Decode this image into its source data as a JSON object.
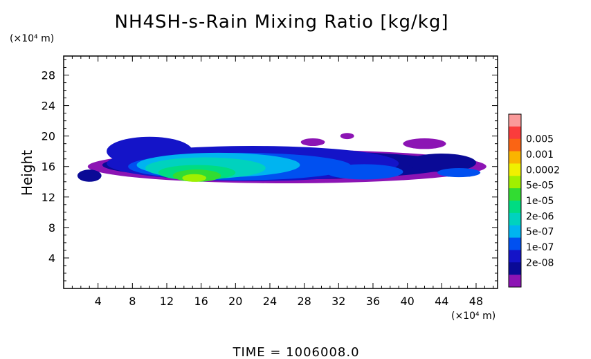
{
  "chart_data": {
    "type": "heatmap",
    "title": "NH4SH-s-Rain Mixing Ratio [kg/kg]",
    "xlabel": "",
    "ylabel": "Height",
    "x_unit": "(×10⁴ m)",
    "y_unit": "(×10⁴ m)",
    "xlim": [
      0,
      50.5
    ],
    "ylim": [
      0,
      30.5
    ],
    "x_ticks": [
      "4",
      "8",
      "12",
      "16",
      "20",
      "24",
      "28",
      "32",
      "36",
      "40",
      "44",
      "48"
    ],
    "y_ticks": [
      "4",
      "8",
      "12",
      "16",
      "20",
      "24",
      "28"
    ],
    "time_label": "TIME = 1006008.0",
    "colorbar": {
      "labels": [
        "0.005",
        "0.001",
        "0.0002",
        "5e-05",
        "1e-05",
        "2e-06",
        "5e-07",
        "1e-07",
        "2e-08"
      ],
      "colors": [
        "#fa9a9a",
        "#fa3c3c",
        "#fa6414",
        "#fab400",
        "#f0f000",
        "#a0f000",
        "#32dc32",
        "#00dc82",
        "#00d2be",
        "#00b4f0",
        "#0050f0",
        "#1414c8",
        "#0a0a96",
        "#8c14b4"
      ]
    },
    "field_regions": [
      {
        "level": 1,
        "cx": 26.0,
        "cy": 16.0,
        "rx": 23.2,
        "ry": 2.2
      },
      {
        "level": 1,
        "cx": 33.0,
        "cy": 20.0,
        "rx": 0.8,
        "ry": 0.4
      },
      {
        "level": 1,
        "cx": 42.0,
        "cy": 19.0,
        "rx": 2.5,
        "ry": 0.7
      },
      {
        "level": 1,
        "cx": 29.0,
        "cy": 19.2,
        "rx": 1.4,
        "ry": 0.5
      },
      {
        "level": 2,
        "cx": 25.0,
        "cy": 16.2,
        "rx": 20.5,
        "ry": 1.9
      },
      {
        "level": 2,
        "cx": 44.0,
        "cy": 16.5,
        "rx": 4.0,
        "ry": 1.2
      },
      {
        "level": 2,
        "cx": 3.0,
        "cy": 14.8,
        "rx": 1.4,
        "ry": 0.8
      },
      {
        "level": 3,
        "cx": 22.0,
        "cy": 16.4,
        "rx": 17.0,
        "ry": 2.3
      },
      {
        "level": 3,
        "cx": 10.0,
        "cy": 18.0,
        "rx": 5.0,
        "ry": 1.9
      },
      {
        "level": 4,
        "cx": 20.5,
        "cy": 16.0,
        "rx": 13.0,
        "ry": 1.8
      },
      {
        "level": 4,
        "cx": 35.0,
        "cy": 15.3,
        "rx": 4.5,
        "ry": 1.0
      },
      {
        "level": 4,
        "cx": 46.0,
        "cy": 15.2,
        "rx": 2.5,
        "ry": 0.6
      },
      {
        "level": 5,
        "cx": 18.0,
        "cy": 16.2,
        "rx": 9.5,
        "ry": 1.6
      },
      {
        "level": 6,
        "cx": 16.5,
        "cy": 15.8,
        "rx": 7.0,
        "ry": 1.4
      },
      {
        "level": 7,
        "cx": 15.5,
        "cy": 15.2,
        "rx": 4.5,
        "ry": 1.0
      },
      {
        "level": 8,
        "cx": 15.5,
        "cy": 14.8,
        "rx": 2.8,
        "ry": 0.8
      },
      {
        "level": 9,
        "cx": 15.2,
        "cy": 14.5,
        "rx": 1.4,
        "ry": 0.5
      }
    ]
  }
}
